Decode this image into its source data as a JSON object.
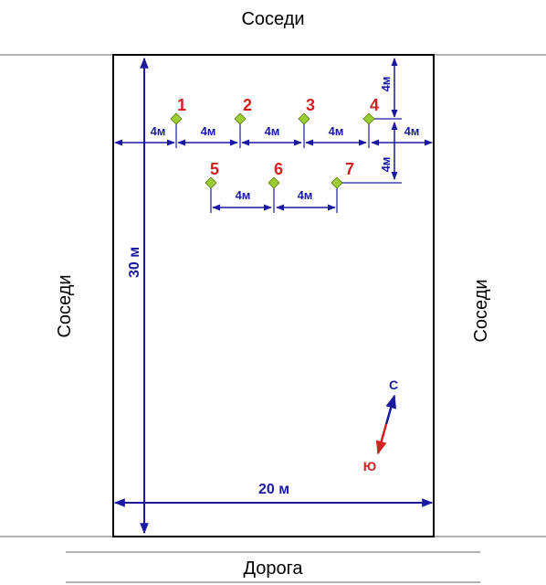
{
  "labels": {
    "top": "Соседи",
    "left": "Соседи",
    "right": "Соседи",
    "bottom": "Дорога"
  },
  "dimensions": {
    "length": "30 м",
    "width": "20 м",
    "spacing": "4м"
  },
  "trees": [
    "1",
    "2",
    "3",
    "4",
    "5",
    "6",
    "7"
  ],
  "compass": {
    "north": "С",
    "south": "Ю"
  },
  "colors": {
    "dimension": "#1a1aa0",
    "number": "#d42020",
    "marker": "#9acd32",
    "border": "#000000"
  }
}
